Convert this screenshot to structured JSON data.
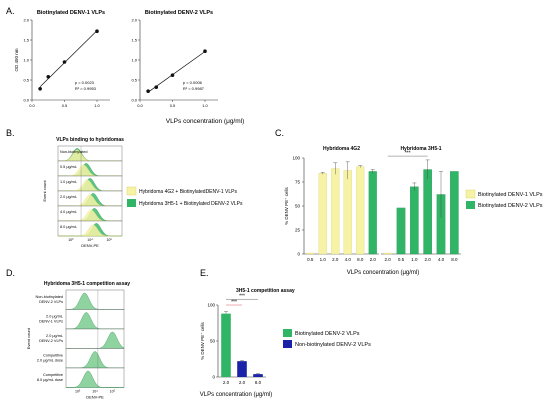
{
  "colors": {
    "yellow": "#f7f3a6",
    "yellow_edge": "#d6cf5a",
    "green": "#2fb565",
    "green_light": "#8fd3a1",
    "navy": "#1a23a8",
    "red": "#d03030",
    "axis": "#333333"
  },
  "panel_letters": {
    "a": "A.",
    "b": "B.",
    "c": "C.",
    "d": "D.",
    "e": "E."
  },
  "chart_data": [
    {
      "id": "A1",
      "type": "scatter",
      "title": "Biotinylated DENV-1 VLPs",
      "ylabel": "OD 450 nm",
      "xlim": [
        0,
        1.2
      ],
      "ylim": [
        0,
        2.0
      ],
      "xticks": [
        "0.0",
        "0.5",
        "1.0"
      ],
      "yticks": [
        "0.0",
        "0.5",
        "1.0",
        "1.5",
        "2.0"
      ],
      "x": [
        0.125,
        0.25,
        0.5,
        1.0
      ],
      "y": [
        0.28,
        0.58,
        0.95,
        1.72
      ],
      "stats": [
        "p = 0.0023",
        "R² = 0.9953"
      ]
    },
    {
      "id": "A2",
      "type": "scatter",
      "title": "Biotinylated DENV-2 VLPs",
      "xlim": [
        0,
        1.2
      ],
      "ylim": [
        0,
        2.0
      ],
      "xticks": [
        "0.0",
        "0.5",
        "1.0"
      ],
      "yticks": [
        "0.0",
        "0.5",
        "1.0",
        "1.5",
        "2.0"
      ],
      "x": [
        0.125,
        0.25,
        0.5,
        1.0
      ],
      "y": [
        0.22,
        0.32,
        0.62,
        1.22
      ],
      "stats": [
        "p = 0.0006",
        "R² = 0.9987"
      ]
    },
    {
      "id": "A-shared",
      "xlabel": "VLPs concentration (μg/ml)"
    },
    {
      "id": "B",
      "type": "histogram-stack",
      "title": "VLPs binding to hybridomas",
      "ylabel": "Event count",
      "xlabel": "DENV-PE",
      "xticks": [
        "10³",
        "10⁴",
        "10⁵"
      ],
      "rows": [
        "Non-biotinylated",
        "0.5 μg/mL",
        "1.0 μg/mL",
        "2.0 μg/mL",
        "4.0 μg/mL",
        "8.0 μg/mL"
      ],
      "green_mode": [
        0.3,
        0.44,
        0.5,
        0.55,
        0.57,
        0.6
      ],
      "yellow_mode": [
        0.3,
        0.4,
        0.46,
        0.5,
        0.52,
        0.55
      ],
      "legend": [
        "Hybridoma 4G2 + BiotinylatedDENV-1 VLPs",
        "Hybridoma 3H5-1 + Biotinylated DENV-2 VLPs"
      ]
    },
    {
      "id": "C",
      "type": "bar",
      "ylabel": "% DENV PE⁺ cells",
      "xlabel": "VLPs concentration (μg/ml)",
      "ylim": [
        0,
        100
      ],
      "yticks": [
        "0",
        "25",
        "50",
        "75",
        "100"
      ],
      "panels": [
        {
          "title": "Hybridoma 4G2",
          "categories": [
            "0.5",
            "1.0",
            "2.0",
            "4.0",
            "8.0",
            "2.0"
          ],
          "values": [
            1,
            84,
            89,
            87,
            91,
            86
          ],
          "errors": [
            0,
            1,
            6,
            9,
            1,
            2
          ],
          "series": [
            "yellow",
            "yellow",
            "yellow",
            "yellow",
            "yellow",
            "green"
          ]
        },
        {
          "title": "Hybridoma 3H5-1",
          "categories": [
            "2.0",
            "0.5",
            "1.0",
            "2.0",
            "4.0",
            "8.0"
          ],
          "values": [
            1,
            48,
            70,
            88,
            62,
            86
          ],
          "errors": [
            0,
            0,
            4,
            10,
            24,
            0
          ],
          "series": [
            "yellow",
            "green",
            "green",
            "green",
            "green",
            "green"
          ],
          "significance": "***"
        }
      ],
      "legend": [
        "Biotinylated DENV-1 VLPs",
        "Biotinylated DENV-2 VLPs"
      ]
    },
    {
      "id": "D",
      "type": "histogram-stack",
      "title": "Hybridoma 3H5-1 competition assay",
      "ylabel": "Event count",
      "xlabel": "DENV-PE",
      "xticks": [
        "10³",
        "10⁴",
        "10⁵"
      ],
      "rows": [
        [
          "Non-biotinylated",
          "DENV-2 VLPs"
        ],
        [
          "2.0 μg/mL",
          "DENV-1 VLPs"
        ],
        [
          "2.0 μg/mL",
          "DENV-2 VLPs"
        ],
        [
          "Competitive",
          "2.0 μg/mL dose"
        ],
        [
          "Competitive",
          "8.0 μg/mL dose"
        ]
      ],
      "mode": [
        0.32,
        0.35,
        0.8,
        0.5,
        0.38
      ]
    },
    {
      "id": "E",
      "type": "bar",
      "title": "3H5-1 competition assay",
      "ylabel": "% DENV PE⁺ cells",
      "xlabel": "VLPs concentration (μg/ml)",
      "ylim": [
        0,
        100
      ],
      "yticks": [
        "0",
        "50",
        "100"
      ],
      "categories": [
        "2.0",
        "2.0",
        "8.0"
      ],
      "values": [
        88,
        22,
        4
      ],
      "errors": [
        3,
        1,
        1
      ],
      "series": [
        "green",
        "navy",
        "navy"
      ],
      "significance": [
        "***",
        "***"
      ],
      "legend": [
        "Biotinylated DENV-2 VLPs",
        "Non-biotinylated DENV-2 VLPs"
      ]
    }
  ]
}
